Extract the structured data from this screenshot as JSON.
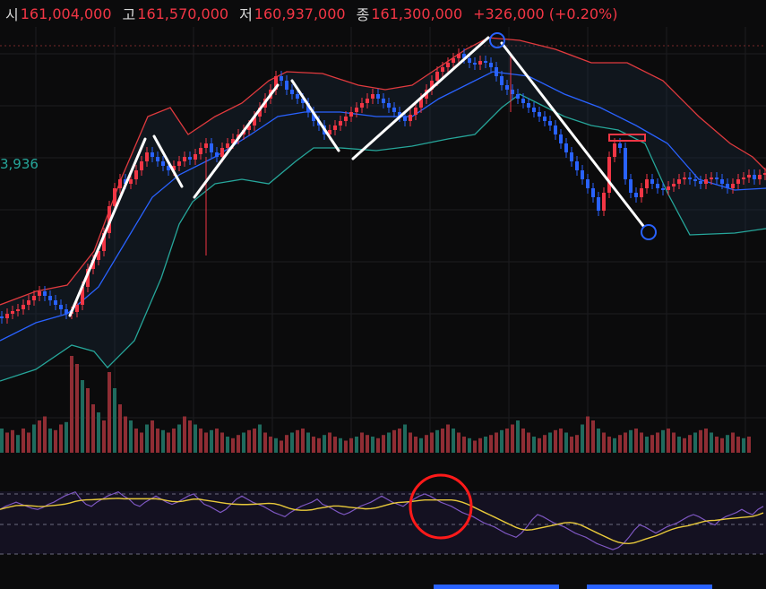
{
  "header": {
    "open_label": "시",
    "open": "161,004,000",
    "high_label": "고",
    "high": "161,570,000",
    "low_label": "저",
    "low": "160,937,000",
    "close_label": "종",
    "close": "161,300,000",
    "change": "+326,000 (+0.20%)"
  },
  "side_value": "3,936",
  "colors": {
    "up": "#f23645",
    "down": "#2962ff",
    "bb_upper": "#e03a3e",
    "bb_mid": "#2962ff",
    "bb_lower": "#26a69a",
    "rsi": "#7e57c2",
    "rsi_ma": "#e8c93a",
    "annotation": "#ffffff",
    "circle_blue": "#2962ff",
    "circle_red": "#ff1a1a"
  },
  "chart_data": [
    {
      "type": "candlestick",
      "x": [
        0,
        6,
        12,
        18,
        24,
        30,
        36,
        42,
        48,
        54,
        60,
        66,
        72,
        78,
        84,
        90,
        96,
        102,
        108,
        114,
        120,
        126,
        132,
        138,
        144,
        150,
        156,
        162,
        168,
        174,
        180,
        186,
        192,
        198,
        204,
        210,
        216,
        222,
        228,
        234,
        240,
        246,
        252,
        258,
        264,
        270,
        276,
        282,
        288,
        294,
        300,
        306,
        312,
        318,
        324,
        330,
        336,
        342,
        348,
        354,
        360,
        366,
        372,
        378,
        384,
        390,
        396,
        402,
        408,
        414,
        420,
        426,
        432,
        438,
        444,
        450,
        456,
        462,
        468,
        474,
        480,
        486,
        492,
        498,
        504,
        510,
        516,
        522,
        528,
        534,
        540,
        546,
        552,
        558,
        564,
        570,
        576,
        582,
        588,
        594,
        600,
        606,
        612,
        618,
        624,
        630,
        636,
        642,
        648,
        654,
        660,
        666,
        672,
        678,
        684,
        690,
        696,
        702,
        708,
        714,
        720,
        726,
        732,
        738,
        744,
        750,
        756,
        762,
        768,
        774,
        780,
        786,
        792,
        798,
        804,
        810,
        816,
        822,
        828,
        834,
        840,
        846,
        852
      ],
      "close": [
        355,
        350,
        347,
        345,
        340,
        335,
        330,
        325,
        330,
        335,
        340,
        345,
        350,
        348,
        340,
        320,
        300,
        290,
        280,
        260,
        230,
        210,
        200,
        205,
        200,
        190,
        180,
        170,
        175,
        180,
        185,
        190,
        185,
        180,
        175,
        178,
        172,
        165,
        160,
        170,
        175,
        165,
        160,
        155,
        150,
        145,
        140,
        130,
        120,
        110,
        100,
        85,
        90,
        100,
        105,
        110,
        115,
        125,
        135,
        140,
        150,
        145,
        140,
        135,
        130,
        125,
        120,
        115,
        110,
        105,
        110,
        115,
        120,
        125,
        130,
        135,
        128,
        120,
        110,
        100,
        90,
        80,
        75,
        70,
        65,
        60,
        65,
        70,
        72,
        68,
        70,
        75,
        85,
        95,
        100,
        105,
        110,
        115,
        120,
        125,
        130,
        135,
        140,
        150,
        160,
        170,
        180,
        190,
        200,
        210,
        220,
        235,
        215,
        175,
        160,
        165,
        200,
        215,
        220,
        210,
        200,
        205,
        210,
        212,
        208,
        205,
        200,
        198,
        200,
        202,
        205,
        200,
        198,
        200,
        205,
        210,
        205,
        200,
        198,
        195,
        200,
        195,
        193
      ],
      "open": [
        353,
        355,
        350,
        347,
        345,
        340,
        335,
        330,
        325,
        330,
        335,
        340,
        345,
        350,
        348,
        340,
        320,
        300,
        290,
        280,
        260,
        230,
        210,
        200,
        205,
        200,
        190,
        180,
        170,
        175,
        180,
        185,
        190,
        185,
        180,
        175,
        178,
        172,
        165,
        160,
        170,
        175,
        165,
        160,
        155,
        150,
        145,
        140,
        130,
        120,
        110,
        100,
        85,
        90,
        100,
        105,
        110,
        115,
        125,
        135,
        140,
        150,
        145,
        140,
        135,
        130,
        125,
        120,
        115,
        110,
        105,
        110,
        115,
        120,
        125,
        130,
        135,
        128,
        120,
        110,
        100,
        90,
        80,
        75,
        70,
        65,
        60,
        65,
        70,
        72,
        68,
        70,
        75,
        85,
        95,
        100,
        105,
        110,
        115,
        120,
        125,
        130,
        135,
        140,
        150,
        160,
        170,
        180,
        190,
        200,
        210,
        220,
        235,
        215,
        175,
        160,
        165,
        200,
        215,
        220,
        210,
        200,
        205,
        210,
        212,
        208,
        205,
        200,
        198,
        200,
        202,
        205,
        200,
        198,
        200,
        205,
        210,
        205,
        200,
        198,
        195,
        200,
        195
      ]
    },
    {
      "type": "bar",
      "name": "volume",
      "values": [
        30,
        25,
        28,
        22,
        30,
        25,
        35,
        40,
        45,
        30,
        28,
        35,
        38,
        120,
        110,
        90,
        80,
        60,
        50,
        40,
        100,
        80,
        60,
        45,
        40,
        30,
        25,
        35,
        40,
        30,
        28,
        25,
        30,
        35,
        45,
        40,
        35,
        30,
        25,
        28,
        30,
        25,
        20,
        18,
        22,
        25,
        28,
        30,
        35,
        25,
        20,
        18,
        15,
        22,
        25,
        28,
        30,
        25,
        20,
        18,
        22,
        25,
        20,
        18,
        15,
        18,
        20,
        25,
        22,
        20,
        18,
        22,
        25,
        28,
        30,
        35,
        25,
        20,
        18,
        22,
        25,
        28,
        30,
        35,
        30,
        25,
        20,
        18,
        15,
        18,
        20,
        22,
        25,
        28,
        30,
        35,
        40,
        30,
        25,
        20,
        18,
        22,
        25,
        28,
        30,
        25,
        20,
        22,
        35,
        45,
        40,
        30,
        25,
        20,
        18,
        22,
        25,
        28,
        30,
        25,
        20,
        22,
        25,
        28,
        30,
        25,
        20,
        18,
        22,
        25,
        28,
        30,
        25,
        20,
        18,
        22,
        25,
        20,
        18,
        20
      ]
    },
    {
      "type": "line",
      "name": "RSI",
      "values": [
        45,
        48,
        50,
        52,
        50,
        48,
        46,
        45,
        47,
        50,
        52,
        55,
        58,
        60,
        62,
        55,
        50,
        48,
        52,
        55,
        58,
        60,
        62,
        58,
        55,
        50,
        48,
        52,
        55,
        58,
        55,
        52,
        50,
        52,
        55,
        58,
        60,
        55,
        50,
        48,
        45,
        42,
        45,
        50,
        55,
        58,
        55,
        52,
        50,
        48,
        45,
        42,
        40,
        38,
        42,
        45,
        48,
        50,
        52,
        55,
        50,
        48,
        45,
        42,
        40,
        42,
        45,
        48,
        50,
        52,
        55,
        58,
        55,
        52,
        50,
        48,
        52,
        55,
        58,
        60,
        58,
        55,
        52,
        50,
        48,
        45,
        42,
        40,
        38,
        35,
        32,
        30,
        28,
        25,
        22,
        20,
        18,
        22,
        28,
        35,
        40,
        38,
        35,
        32,
        30,
        28,
        25,
        22,
        20,
        18,
        15,
        12,
        10,
        8,
        6,
        8,
        12,
        18,
        25,
        30,
        28,
        25,
        22,
        25,
        28,
        30,
        32,
        35,
        38,
        40,
        38,
        35,
        32,
        30,
        35,
        38,
        40,
        42,
        45,
        42,
        40,
        45,
        48
      ]
    }
  ]
}
